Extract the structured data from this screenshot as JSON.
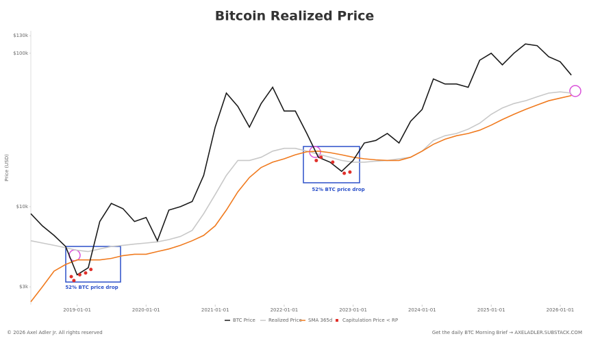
{
  "chart_data": {
    "type": "line",
    "title": "Bitcoin Realized Price",
    "y_label": "Price (USD)",
    "log_scale": true,
    "x": [
      "2018-05-01",
      "2018-07-01",
      "2018-09-01",
      "2018-11-01",
      "2019-01-01",
      "2019-03-01",
      "2019-05-01",
      "2019-07-01",
      "2019-09-01",
      "2019-11-01",
      "2020-01-01",
      "2020-03-01",
      "2020-05-01",
      "2020-07-01",
      "2020-09-01",
      "2020-11-01",
      "2021-01-01",
      "2021-03-01",
      "2021-05-01",
      "2021-07-01",
      "2021-09-01",
      "2021-11-01",
      "2022-01-01",
      "2022-03-01",
      "2022-05-01",
      "2022-07-01",
      "2022-09-01",
      "2022-11-01",
      "2023-01-01",
      "2023-03-01",
      "2023-05-01",
      "2023-07-01",
      "2023-09-01",
      "2023-11-01",
      "2024-01-01",
      "2024-03-01",
      "2024-05-01",
      "2024-07-01",
      "2024-09-01",
      "2024-11-01",
      "2025-01-01",
      "2025-03-01",
      "2025-05-01",
      "2025-07-01",
      "2025-09-01",
      "2025-11-01",
      "2026-01-01",
      "2026-03-01"
    ],
    "xlim": [
      "2018-05-01",
      "2026-04-20"
    ],
    "xticks": [
      "2019-01-01",
      "2020-01-01",
      "2021-01-01",
      "2022-01-01",
      "2023-01-01",
      "2024-01-01",
      "2025-01-01",
      "2026-01-01"
    ],
    "ylim": [
      2300,
      140000
    ],
    "yticks": [
      {
        "value": 3000,
        "label": "$3k"
      },
      {
        "value": 10000,
        "label": "$10k"
      },
      {
        "value": 100000,
        "label": "$100k"
      },
      {
        "value": 130000,
        "label": "$130k"
      }
    ],
    "series": [
      {
        "name": "BTC Price",
        "color": "#1a1a1a",
        "values": [
          9000,
          7500,
          6500,
          5500,
          3600,
          4000,
          8000,
          10500,
          9700,
          8000,
          8500,
          6000,
          9500,
          10000,
          10800,
          16000,
          33000,
          55000,
          45000,
          33000,
          47000,
          60000,
          42000,
          42000,
          30000,
          21000,
          19500,
          17000,
          20000,
          26000,
          27000,
          30000,
          26000,
          36000,
          43000,
          68000,
          63000,
          63000,
          60000,
          90000,
          100000,
          84000,
          100000,
          115000,
          112000,
          95000,
          88000,
          72000
        ]
      },
      {
        "name": "Realized Price",
        "color": "#c8c8c8",
        "values": [
          6000,
          5800,
          5600,
          5400,
          5200,
          5100,
          5300,
          5500,
          5600,
          5700,
          5800,
          5900,
          6100,
          6400,
          7000,
          9000,
          12000,
          16000,
          20000,
          20000,
          21000,
          23000,
          24000,
          24000,
          23000,
          22000,
          21000,
          20000,
          19500,
          19500,
          19800,
          20000,
          20500,
          21000,
          23000,
          27000,
          29000,
          30000,
          32000,
          35000,
          40000,
          44000,
          47000,
          49000,
          52000,
          55000,
          56000,
          55000
        ]
      },
      {
        "name": "SMA 365d",
        "color": "#f07a1e",
        "values": [
          2400,
          3000,
          3800,
          4200,
          4500,
          4500,
          4500,
          4600,
          4800,
          4900,
          4900,
          5100,
          5300,
          5600,
          6000,
          6500,
          7500,
          9500,
          12500,
          15500,
          18000,
          19500,
          20500,
          21800,
          22800,
          23000,
          22500,
          21800,
          21000,
          20500,
          20200,
          20000,
          20000,
          21000,
          23000,
          25500,
          27500,
          29000,
          30000,
          31500,
          34000,
          37000,
          40000,
          43000,
          46000,
          49000,
          51000,
          53000
        ]
      },
      {
        "name": "Capitulation Price < RP",
        "color": "#e0302a",
        "type": "scatter",
        "x": [
          "2018-12-01",
          "2018-12-15",
          "2019-01-15",
          "2019-02-15",
          "2019-03-15",
          "2022-06-20",
          "2022-07-15",
          "2022-09-15",
          "2022-11-15",
          "2022-12-15"
        ],
        "values": [
          3500,
          3300,
          3600,
          3700,
          3900,
          20000,
          21000,
          19500,
          16500,
          16800
        ]
      }
    ],
    "annotations": [
      "52% BTC price drop",
      "52% BTC price drop"
    ],
    "footer_left": "© 2026 Axel Adler Jr. All rights reserved",
    "footer_right": "Get the daily BTC Morning Brief → AXELADLER.SUBSTACK.COM"
  }
}
